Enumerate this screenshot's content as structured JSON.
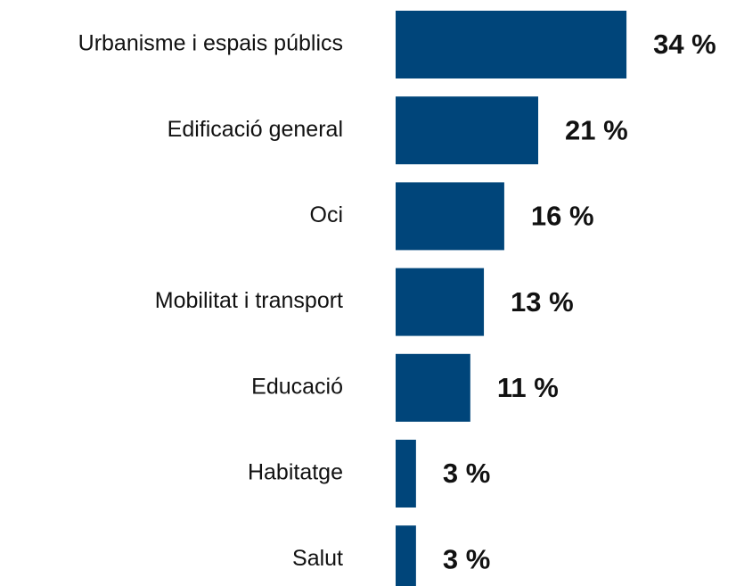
{
  "chart_data": {
    "type": "bar",
    "orientation": "horizontal",
    "categories": [
      "Urbanisme i espais públics",
      "Edificació general",
      "Oci",
      "Mobilitat i transport",
      "Educació",
      "Habitatge",
      "Salut"
    ],
    "values": [
      34,
      21,
      16,
      13,
      11,
      3,
      3
    ],
    "value_labels": [
      "34 %",
      "21 %",
      "16 %",
      "13 %",
      "11 %",
      "3 %",
      "3 %"
    ],
    "color": "#00457a"
  }
}
